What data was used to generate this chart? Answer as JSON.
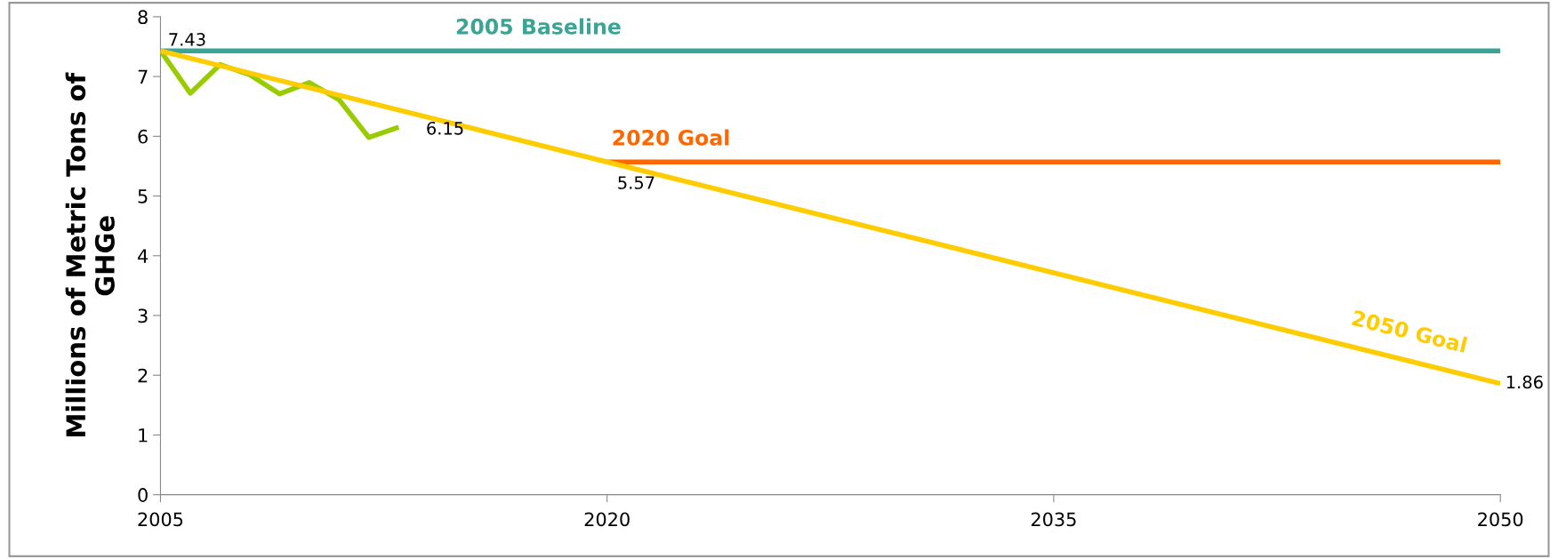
{
  "chart_data": {
    "type": "line",
    "ylabel": "Millions of Metric Tons of\nGHGe",
    "xlim": [
      2005,
      2050
    ],
    "xticks": [
      2005,
      2020,
      2035,
      2050
    ],
    "ylim": [
      0,
      8
    ],
    "yticks": [
      0,
      1,
      2,
      3,
      4,
      5,
      6,
      7,
      8
    ],
    "grid": false,
    "legend": false,
    "marker": "none",
    "line_style": "solid",
    "series": [
      {
        "name": "2005 Baseline",
        "color": "#3aa594",
        "x": [
          2005,
          2050
        ],
        "values": [
          7.43,
          7.43
        ]
      },
      {
        "name": "2020 Goal",
        "color": "#ff6600",
        "x": [
          2020,
          2050
        ],
        "values": [
          5.57,
          5.57
        ]
      },
      {
        "name": "2050 Goal",
        "color": "#ffcc00",
        "x": [
          2005,
          2020,
          2050
        ],
        "values": [
          7.43,
          5.57,
          1.86
        ],
        "value_labels": [
          "7.43",
          "5.57",
          "1.86"
        ]
      },
      {
        "color": "#99cc00",
        "x": [
          2005,
          2006,
          2007,
          2008,
          2009,
          2010,
          2011,
          2012,
          2013
        ],
        "values": [
          7.43,
          6.72,
          7.2,
          7.03,
          6.71,
          6.9,
          6.61,
          5.98,
          6.15
        ],
        "value_labels": [
          null,
          null,
          null,
          null,
          null,
          null,
          null,
          null,
          "6.15"
        ]
      }
    ]
  }
}
